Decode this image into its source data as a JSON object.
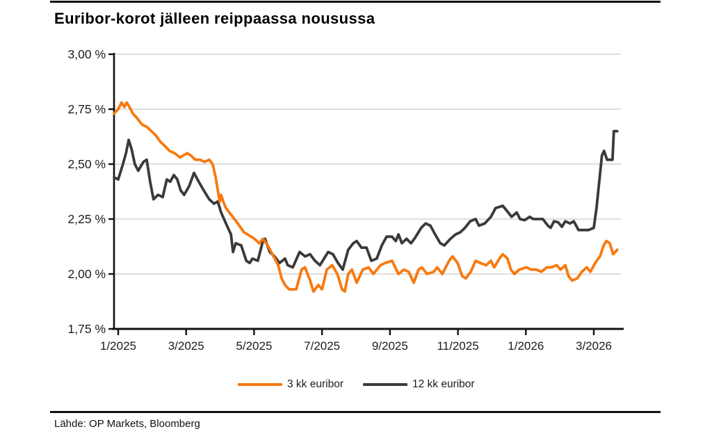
{
  "title": "Euribor-korot jälleen reippaassa nousussa",
  "source": "Lähde: OP Markets, Bloomberg",
  "colors": {
    "series_3kk": "#f8790f",
    "series_12kk": "#3a3a3a",
    "grid": "#c9c9c9",
    "axis": "#111111",
    "text": "#1c1c1c"
  },
  "chart_data": {
    "type": "line",
    "title": "Euribor-korot jälleen reippaassa nousussa",
    "xlabel": "",
    "ylabel": "",
    "ylim": [
      1.75,
      3.0
    ],
    "grid": "horizontal",
    "legend_position": "bottom",
    "y_ticks": [
      "3,00 %",
      "2,75 %",
      "2,50 %",
      "2,25 %",
      "2,00 %",
      "1,75 %"
    ],
    "y_tick_values": [
      3.0,
      2.75,
      2.5,
      2.25,
      2.0,
      1.75
    ],
    "x_ticks": [
      "1/2025",
      "3/2025",
      "5/2025",
      "7/2025",
      "9/2025",
      "11/2025",
      "1/2026",
      "3/2026"
    ],
    "x_unit": "months-since-jan-2025",
    "x_range": [
      -0.12,
      15.0
    ],
    "series": [
      {
        "name": "3 kk euribor",
        "color": "#f8790f",
        "points": [
          [
            -0.12,
            2.73
          ],
          [
            0.0,
            2.75
          ],
          [
            0.1,
            2.78
          ],
          [
            0.18,
            2.76
          ],
          [
            0.25,
            2.78
          ],
          [
            0.33,
            2.76
          ],
          [
            0.43,
            2.73
          ],
          [
            0.55,
            2.71
          ],
          [
            0.7,
            2.68
          ],
          [
            0.84,
            2.67
          ],
          [
            0.98,
            2.65
          ],
          [
            1.11,
            2.63
          ],
          [
            1.25,
            2.6
          ],
          [
            1.39,
            2.58
          ],
          [
            1.51,
            2.56
          ],
          [
            1.66,
            2.55
          ],
          [
            1.82,
            2.53
          ],
          [
            1.92,
            2.54
          ],
          [
            2.03,
            2.55
          ],
          [
            2.13,
            2.54
          ],
          [
            2.27,
            2.52
          ],
          [
            2.41,
            2.52
          ],
          [
            2.54,
            2.51
          ],
          [
            2.68,
            2.52
          ],
          [
            2.78,
            2.5
          ],
          [
            2.87,
            2.44
          ],
          [
            2.93,
            2.38
          ],
          [
            2.99,
            2.33
          ],
          [
            3.03,
            2.36
          ],
          [
            3.09,
            2.33
          ],
          [
            3.17,
            2.3
          ],
          [
            3.32,
            2.27
          ],
          [
            3.52,
            2.23
          ],
          [
            3.7,
            2.19
          ],
          [
            3.81,
            2.18
          ],
          [
            4.01,
            2.16
          ],
          [
            4.15,
            2.14
          ],
          [
            4.26,
            2.16
          ],
          [
            4.4,
            2.13
          ],
          [
            4.54,
            2.09
          ],
          [
            4.71,
            2.04
          ],
          [
            4.81,
            1.98
          ],
          [
            4.91,
            1.95
          ],
          [
            5.03,
            1.93
          ],
          [
            5.24,
            1.93
          ],
          [
            5.4,
            2.02
          ],
          [
            5.5,
            2.03
          ],
          [
            5.65,
            1.97
          ],
          [
            5.75,
            1.92
          ],
          [
            5.89,
            1.95
          ],
          [
            6.0,
            1.93
          ],
          [
            6.14,
            2.02
          ],
          [
            6.3,
            2.04
          ],
          [
            6.45,
            2.0
          ],
          [
            6.59,
            1.93
          ],
          [
            6.67,
            1.92
          ],
          [
            6.77,
            2.0
          ],
          [
            6.88,
            2.02
          ],
          [
            7.02,
            1.96
          ],
          [
            7.2,
            2.02
          ],
          [
            7.37,
            2.03
          ],
          [
            7.51,
            2.0
          ],
          [
            7.72,
            2.04
          ],
          [
            7.86,
            2.05
          ],
          [
            8.06,
            2.06
          ],
          [
            8.25,
            2.0
          ],
          [
            8.41,
            2.02
          ],
          [
            8.55,
            2.01
          ],
          [
            8.7,
            1.96
          ],
          [
            8.84,
            2.02
          ],
          [
            8.94,
            2.03
          ],
          [
            9.09,
            2.0
          ],
          [
            9.29,
            2.01
          ],
          [
            9.39,
            2.03
          ],
          [
            9.54,
            2.0
          ],
          [
            9.74,
            2.06
          ],
          [
            9.84,
            2.08
          ],
          [
            9.99,
            2.05
          ],
          [
            10.13,
            1.99
          ],
          [
            10.23,
            1.98
          ],
          [
            10.38,
            2.01
          ],
          [
            10.52,
            2.06
          ],
          [
            10.66,
            2.05
          ],
          [
            10.83,
            2.04
          ],
          [
            10.97,
            2.06
          ],
          [
            11.07,
            2.03
          ],
          [
            11.22,
            2.07
          ],
          [
            11.32,
            2.09
          ],
          [
            11.46,
            2.07
          ],
          [
            11.56,
            2.02
          ],
          [
            11.66,
            2.0
          ],
          [
            11.81,
            2.02
          ],
          [
            12.01,
            2.03
          ],
          [
            12.16,
            2.02
          ],
          [
            12.3,
            2.02
          ],
          [
            12.46,
            2.01
          ],
          [
            12.61,
            2.03
          ],
          [
            12.75,
            2.03
          ],
          [
            12.91,
            2.04
          ],
          [
            13.02,
            2.02
          ],
          [
            13.16,
            2.04
          ],
          [
            13.26,
            1.99
          ],
          [
            13.36,
            1.97
          ],
          [
            13.51,
            1.98
          ],
          [
            13.65,
            2.01
          ],
          [
            13.79,
            2.03
          ],
          [
            13.9,
            2.01
          ],
          [
            14.04,
            2.05
          ],
          [
            14.18,
            2.08
          ],
          [
            14.29,
            2.13
          ],
          [
            14.37,
            2.15
          ],
          [
            14.47,
            2.14
          ],
          [
            14.57,
            2.09
          ],
          [
            14.69,
            2.11
          ]
        ]
      },
      {
        "name": "12 kk euribor",
        "color": "#3a3a3a",
        "points": [
          [
            -0.12,
            2.44
          ],
          [
            0.0,
            2.43
          ],
          [
            0.14,
            2.5
          ],
          [
            0.23,
            2.55
          ],
          [
            0.31,
            2.61
          ],
          [
            0.39,
            2.57
          ],
          [
            0.49,
            2.5
          ],
          [
            0.59,
            2.47
          ],
          [
            0.74,
            2.51
          ],
          [
            0.84,
            2.52
          ],
          [
            0.94,
            2.42
          ],
          [
            1.04,
            2.34
          ],
          [
            1.17,
            2.36
          ],
          [
            1.31,
            2.35
          ],
          [
            1.43,
            2.43
          ],
          [
            1.53,
            2.42
          ],
          [
            1.64,
            2.45
          ],
          [
            1.74,
            2.43
          ],
          [
            1.84,
            2.38
          ],
          [
            1.94,
            2.36
          ],
          [
            2.09,
            2.4
          ],
          [
            2.23,
            2.46
          ],
          [
            2.37,
            2.42
          ],
          [
            2.52,
            2.38
          ],
          [
            2.68,
            2.34
          ],
          [
            2.82,
            2.32
          ],
          [
            2.93,
            2.33
          ],
          [
            3.03,
            2.28
          ],
          [
            3.17,
            2.23
          ],
          [
            3.32,
            2.18
          ],
          [
            3.38,
            2.1
          ],
          [
            3.46,
            2.14
          ],
          [
            3.62,
            2.13
          ],
          [
            3.77,
            2.06
          ],
          [
            3.87,
            2.05
          ],
          [
            3.95,
            2.07
          ],
          [
            4.11,
            2.06
          ],
          [
            4.26,
            2.15
          ],
          [
            4.32,
            2.16
          ],
          [
            4.46,
            2.1
          ],
          [
            4.6,
            2.08
          ],
          [
            4.75,
            2.05
          ],
          [
            4.91,
            2.07
          ],
          [
            4.99,
            2.04
          ],
          [
            5.14,
            2.03
          ],
          [
            5.34,
            2.1
          ],
          [
            5.5,
            2.08
          ],
          [
            5.65,
            2.09
          ],
          [
            5.79,
            2.06
          ],
          [
            5.94,
            2.04
          ],
          [
            6.18,
            2.1
          ],
          [
            6.32,
            2.09
          ],
          [
            6.47,
            2.05
          ],
          [
            6.61,
            2.02
          ],
          [
            6.77,
            2.11
          ],
          [
            6.92,
            2.14
          ],
          [
            7.02,
            2.15
          ],
          [
            7.16,
            2.12
          ],
          [
            7.31,
            2.12
          ],
          [
            7.45,
            2.06
          ],
          [
            7.61,
            2.07
          ],
          [
            7.76,
            2.13
          ],
          [
            7.9,
            2.17
          ],
          [
            8.06,
            2.17
          ],
          [
            8.17,
            2.15
          ],
          [
            8.25,
            2.18
          ],
          [
            8.35,
            2.14
          ],
          [
            8.49,
            2.16
          ],
          [
            8.62,
            2.14
          ],
          [
            8.72,
            2.16
          ],
          [
            8.92,
            2.21
          ],
          [
            9.05,
            2.23
          ],
          [
            9.19,
            2.22
          ],
          [
            9.33,
            2.18
          ],
          [
            9.48,
            2.14
          ],
          [
            9.6,
            2.13
          ],
          [
            9.78,
            2.16
          ],
          [
            9.93,
            2.18
          ],
          [
            10.07,
            2.19
          ],
          [
            10.21,
            2.21
          ],
          [
            10.36,
            2.24
          ],
          [
            10.52,
            2.25
          ],
          [
            10.62,
            2.22
          ],
          [
            10.79,
            2.23
          ],
          [
            10.97,
            2.26
          ],
          [
            11.11,
            2.3
          ],
          [
            11.32,
            2.31
          ],
          [
            11.48,
            2.28
          ],
          [
            11.58,
            2.26
          ],
          [
            11.73,
            2.28
          ],
          [
            11.83,
            2.25
          ],
          [
            11.97,
            2.245
          ],
          [
            12.11,
            2.26
          ],
          [
            12.22,
            2.25
          ],
          [
            12.36,
            2.25
          ],
          [
            12.5,
            2.25
          ],
          [
            12.65,
            2.22
          ],
          [
            12.73,
            2.21
          ],
          [
            12.83,
            2.24
          ],
          [
            12.95,
            2.235
          ],
          [
            13.06,
            2.215
          ],
          [
            13.16,
            2.24
          ],
          [
            13.3,
            2.23
          ],
          [
            13.41,
            2.24
          ],
          [
            13.55,
            2.2
          ],
          [
            13.71,
            2.2
          ],
          [
            13.85,
            2.2
          ],
          [
            14.0,
            2.21
          ],
          [
            14.08,
            2.3
          ],
          [
            14.18,
            2.45
          ],
          [
            14.24,
            2.54
          ],
          [
            14.3,
            2.56
          ],
          [
            14.39,
            2.52
          ],
          [
            14.49,
            2.52
          ],
          [
            14.55,
            2.52
          ],
          [
            14.59,
            2.65
          ],
          [
            14.69,
            2.65
          ]
        ]
      }
    ]
  }
}
